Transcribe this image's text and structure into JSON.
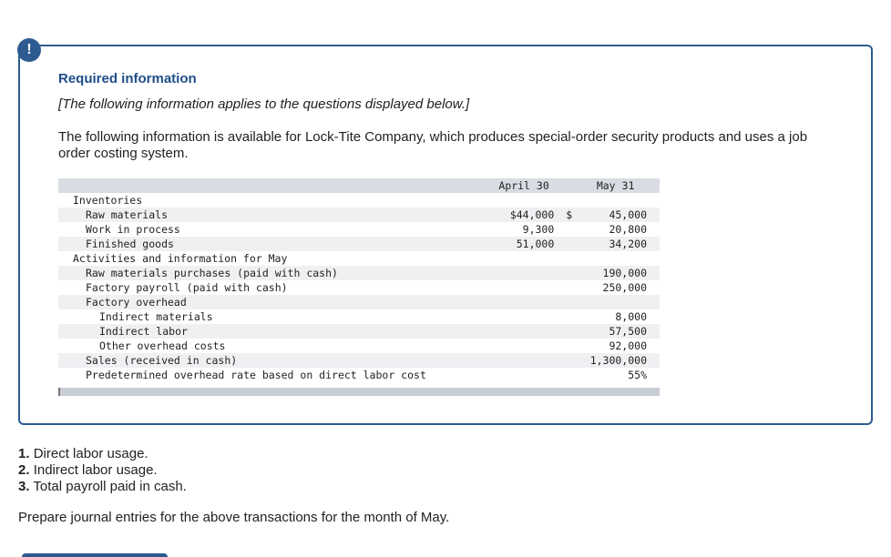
{
  "alert": {
    "symbol": "!"
  },
  "required": {
    "heading": "Required information",
    "note": "[The following information applies to the questions displayed below.]",
    "intro": "The following information is available for Lock-Tite Company, which produces special-order security products and uses a job order costing system."
  },
  "table": {
    "headers": {
      "col1": "April 30",
      "col2": "May 31"
    },
    "rows": [
      {
        "label": "Inventories",
        "indent": 1,
        "apr": "",
        "dollar": "",
        "may": ""
      },
      {
        "label": "Raw materials",
        "indent": 2,
        "apr": "$44,000",
        "dollar": "$",
        "may": "45,000"
      },
      {
        "label": "Work in process",
        "indent": 2,
        "apr": "9,300",
        "dollar": "",
        "may": "20,800"
      },
      {
        "label": "Finished goods",
        "indent": 2,
        "apr": "51,000",
        "dollar": "",
        "may": "34,200"
      },
      {
        "label": "Activities and information for May",
        "indent": 1,
        "apr": "",
        "dollar": "",
        "may": ""
      },
      {
        "label": "Raw materials purchases (paid with cash)",
        "indent": 2,
        "apr": "",
        "dollar": "",
        "may": "190,000"
      },
      {
        "label": "Factory payroll (paid with cash)",
        "indent": 2,
        "apr": "",
        "dollar": "",
        "may": "250,000"
      },
      {
        "label": "Factory overhead",
        "indent": 2,
        "apr": "",
        "dollar": "",
        "may": ""
      },
      {
        "label": "Indirect materials",
        "indent": 3,
        "apr": "",
        "dollar": "",
        "may": "8,000"
      },
      {
        "label": "Indirect labor",
        "indent": 3,
        "apr": "",
        "dollar": "",
        "may": "57,500"
      },
      {
        "label": "Other overhead costs",
        "indent": 3,
        "apr": "",
        "dollar": "",
        "may": "92,000"
      },
      {
        "label": "Sales (received in cash)",
        "indent": 2,
        "apr": "",
        "dollar": "",
        "may": "1,300,000"
      },
      {
        "label": "Predetermined overhead rate based on direct labor cost",
        "indent": 2,
        "apr": "",
        "dollar": "",
        "may": "55%"
      }
    ]
  },
  "questions": [
    {
      "num": "1.",
      "text": "Direct labor usage."
    },
    {
      "num": "2.",
      "text": "Indirect labor usage."
    },
    {
      "num": "3.",
      "text": "Total payroll paid in cash."
    }
  ],
  "instruction": "Prepare journal entries for the above transactions for the month of May."
}
